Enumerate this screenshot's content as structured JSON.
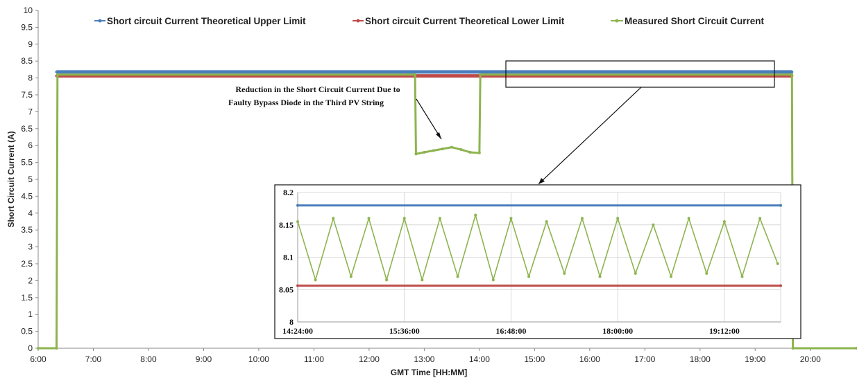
{
  "colors": {
    "upper": "#4a7ebb",
    "lower": "#be4b48",
    "measured": "#8db44f"
  },
  "chart_data": [
    {
      "type": "line",
      "title": "",
      "xlabel": "GMT Time [HH:MM]",
      "ylabel": "Short Circuit Current (A)",
      "xlim": [
        "6:00",
        "20:50"
      ],
      "xticks": [
        "6:00",
        "7:00",
        "8:00",
        "9:00",
        "10:00",
        "11:00",
        "12:00",
        "13:00",
        "14:00",
        "15:00",
        "16:00",
        "17:00",
        "18:00",
        "19:00",
        "20:00"
      ],
      "ylim": [
        0,
        10
      ],
      "yticks": [
        "0",
        "0.5",
        "1",
        "1.5",
        "2",
        "2.5",
        "3",
        "3.5",
        "4",
        "4.5",
        "5",
        "5.5",
        "6",
        "6.5",
        "7",
        "7.5",
        "8",
        "8.5",
        "9",
        "9.5",
        "10"
      ],
      "grid": false,
      "legend_position": "top",
      "series": [
        {
          "name": "Short circuit Current Theoretical Upper Limit",
          "x": [
            "6:20",
            "19:40"
          ],
          "y": [
            8.18,
            8.18
          ]
        },
        {
          "name": "Short circuit Current Theoretical Lower Limit",
          "x": [
            "6:20",
            "19:40"
          ],
          "y": [
            8.06,
            8.06
          ]
        },
        {
          "name": "Measured Short Circuit Current",
          "x": [
            "6:00",
            "6:20",
            "6:21",
            "12:50",
            "12:51",
            "13:00",
            "13:10",
            "13:20",
            "13:30",
            "13:40",
            "13:50",
            "14:00",
            "14:01",
            "19:40",
            "19:41",
            "20:50"
          ],
          "y": [
            0,
            0,
            8.1,
            8.1,
            5.75,
            5.8,
            5.85,
            5.9,
            5.95,
            5.88,
            5.8,
            5.78,
            8.1,
            8.1,
            0,
            0
          ]
        }
      ],
      "annotations": [
        {
          "text": "Reduction in the Short Circuit Current Due to"
        },
        {
          "text": "Faulty Bypass Diode in the Third PV String"
        }
      ]
    },
    {
      "type": "line",
      "title": "",
      "xlim": [
        "14:24:00",
        "19:50:00"
      ],
      "xticks": [
        "14:24:00",
        "15:36:00",
        "16:48:00",
        "18:00:00",
        "19:12:00"
      ],
      "ylim": [
        8,
        8.2
      ],
      "yticks": [
        "8",
        "8.05",
        "8.1",
        "8.15",
        "8.2"
      ],
      "grid": true,
      "series": [
        {
          "name": "Short circuit Current Theoretical Upper Limit",
          "x": [
            "14:24:00",
            "19:50:00"
          ],
          "y": [
            8.18,
            8.18
          ]
        },
        {
          "name": "Short circuit Current Theoretical Lower Limit",
          "x": [
            "14:24:00",
            "19:50:00"
          ],
          "y": [
            8.056,
            8.056
          ]
        },
        {
          "name": "Measured Short Circuit Current",
          "x": [
            "14:24:00",
            "14:36:00",
            "14:48:00",
            "15:00:00",
            "15:12:00",
            "15:24:00",
            "15:36:00",
            "15:48:00",
            "16:00:00",
            "16:12:00",
            "16:24:00",
            "16:36:00",
            "16:48:00",
            "17:00:00",
            "17:12:00",
            "17:24:00",
            "17:36:00",
            "17:48:00",
            "18:00:00",
            "18:12:00",
            "18:24:00",
            "18:36:00",
            "18:48:00",
            "19:00:00",
            "19:12:00",
            "19:24:00",
            "19:36:00",
            "19:48:00"
          ],
          "y": [
            8.155,
            8.065,
            8.16,
            8.07,
            8.16,
            8.065,
            8.16,
            8.065,
            8.16,
            8.07,
            8.165,
            8.065,
            8.16,
            8.07,
            8.155,
            8.075,
            8.16,
            8.07,
            8.16,
            8.075,
            8.15,
            8.07,
            8.16,
            8.075,
            8.155,
            8.07,
            8.16,
            8.09
          ]
        }
      ]
    }
  ]
}
